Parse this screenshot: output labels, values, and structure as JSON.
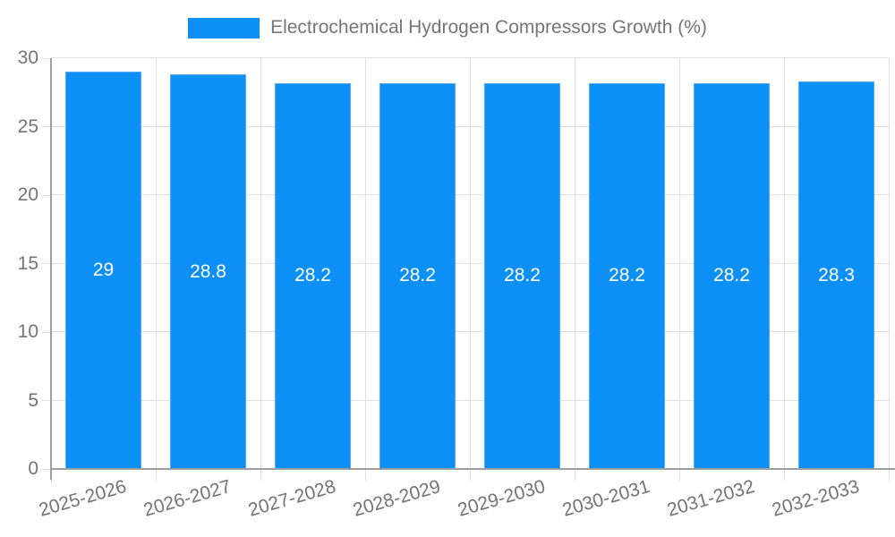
{
  "legend": {
    "label": "Electrochemical Hydrogen Compressors Growth (%)"
  },
  "chart_data": {
    "type": "bar",
    "title": "Electrochemical Hydrogen Compressors Growth (%)",
    "categories": [
      "2025-2026",
      "2026-2027",
      "2027-2028",
      "2028-2029",
      "2029-2030",
      "2030-2031",
      "2031-2032",
      "2032-2033"
    ],
    "values": [
      29,
      28.8,
      28.2,
      28.2,
      28.2,
      28.2,
      28.2,
      28.3
    ],
    "value_labels": [
      "29",
      "28.8",
      "28.2",
      "28.2",
      "28.2",
      "28.2",
      "28.2",
      "28.3"
    ],
    "xlabel": "",
    "ylabel": "",
    "ylim": [
      0,
      30
    ],
    "y_ticks": [
      0,
      5,
      10,
      15,
      20,
      25,
      30
    ],
    "grid": true,
    "legend_position": "top-center",
    "colors": {
      "bar_fill": "#0d90f5",
      "bar_border": "#55aaf2",
      "grid_line": "#e0e0e0",
      "axis_line": "#9e9e9e",
      "tick_text": "#757575",
      "value_label_text": "#ffffff",
      "background": "#ffffff"
    }
  }
}
